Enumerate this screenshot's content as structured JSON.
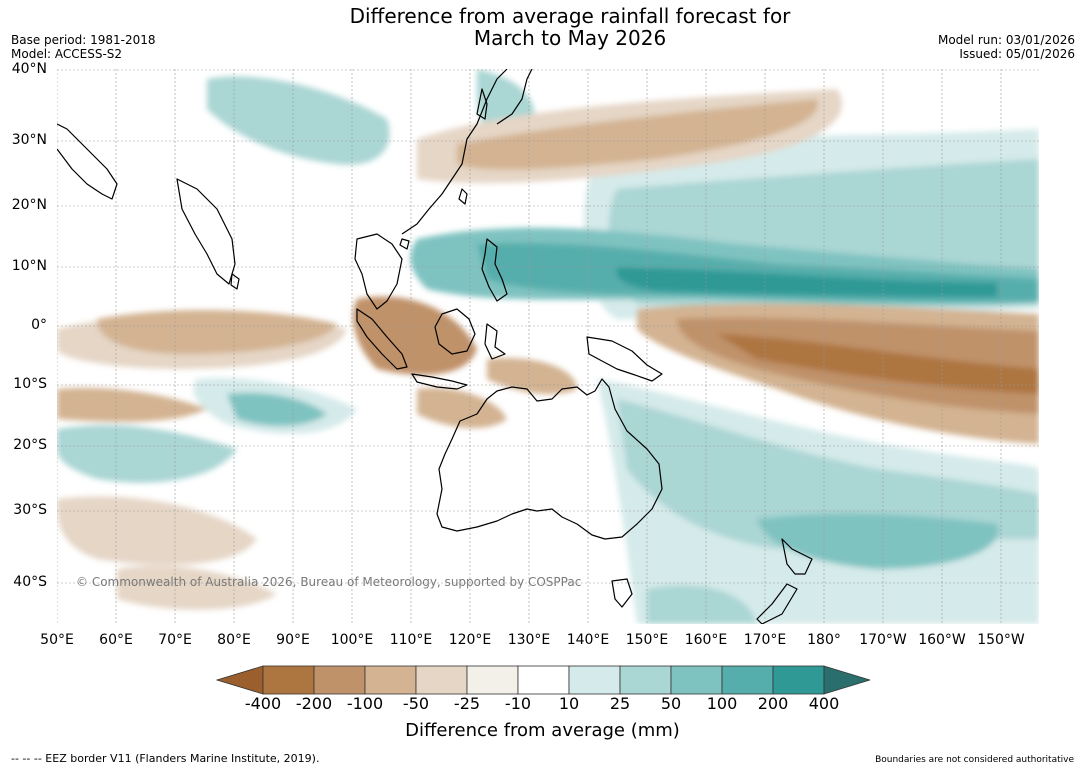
{
  "header": {
    "title_line1": "Difference from average rainfall forecast for",
    "title_line2": "March to May 2026",
    "base_period": "Base period: 1981-2018",
    "model": "Model: ACCESS-S2",
    "model_run": "Model run: 03/01/2026",
    "issued": "Issued: 05/01/2026"
  },
  "map": {
    "lat_labels": [
      "40°N",
      "30°N",
      "20°N",
      "10°N",
      "0°",
      "10°S",
      "20°S",
      "30°S",
      "40°S"
    ],
    "lon_labels": [
      "50°E",
      "60°E",
      "70°E",
      "80°E",
      "90°E",
      "100°E",
      "110°E",
      "120°E",
      "130°E",
      "140°E",
      "150°E",
      "160°E",
      "170°E",
      "180°",
      "170°W",
      "160°W",
      "150°W"
    ],
    "copyright": "© Commonwealth of Australia 2026, Bureau of Meteorology, supported by COSPPac",
    "ocean_color": "#ffffff",
    "land_border_color": "#000000"
  },
  "legend": {
    "tick_labels": [
      "-400",
      "-200",
      "-100",
      "-50",
      "-25",
      "-10",
      "10",
      "25",
      "50",
      "100",
      "200",
      "400"
    ],
    "colors": [
      "#9b5f2e",
      "#ad7540",
      "#c0926a",
      "#d3b392",
      "#e5d6c6",
      "#f3efe9",
      "#ffffff",
      "#d5eaea",
      "#aad6d4",
      "#7fc3c1",
      "#56aeac",
      "#2e9995",
      "#2a6f6d"
    ],
    "label": "Difference from average (mm)"
  },
  "footer": {
    "eez_note": "--  --  -- EEZ border V11 (Flanders Marine Institute, 2019).",
    "boundaries_note": "Boundaries are not considered authoritative"
  }
}
